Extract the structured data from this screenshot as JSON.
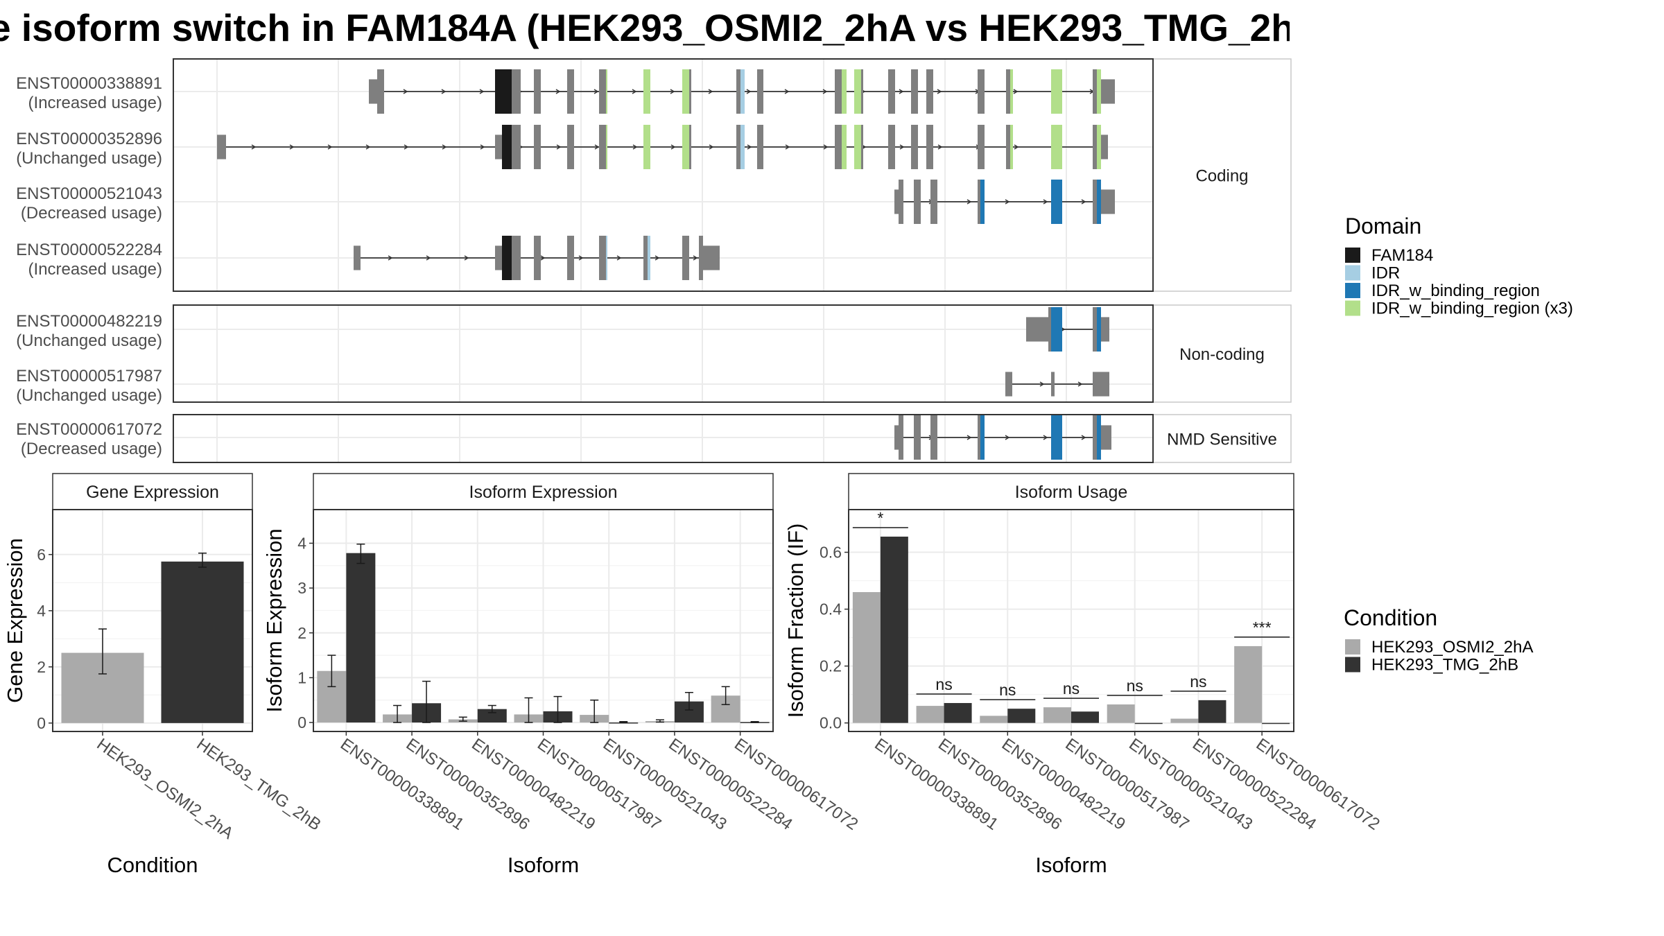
{
  "title": "e isoform switch in FAM184A (HEK293_OSMI2_2hA vs HEK293_TMG_2h",
  "colors": {
    "FAM184": "#1a1a1a",
    "IDR": "#a6cee3",
    "IDR_w_binding_region": "#1f78b4",
    "IDR_w_binding_region (x3)": "#b2df8a",
    "exon": "#7f7f7f",
    "cond_a": "#aaaaaa",
    "cond_b": "#333333",
    "strip_bg": "#ffffff",
    "panel_border": "#333333",
    "grid": "#ebebeb"
  },
  "transcript_panels": [
    {
      "label": "Coding",
      "transcripts": [
        {
          "id": "ENST00000338891",
          "usage": "(Increased usage)"
        },
        {
          "id": "ENST00000352896",
          "usage": "(Unchanged usage)"
        },
        {
          "id": "ENST00000521043",
          "usage": "(Decreased usage)"
        },
        {
          "id": "ENST00000522284",
          "usage": "(Increased usage)"
        }
      ]
    },
    {
      "label": "Non-coding",
      "transcripts": [
        {
          "id": "ENST00000482219",
          "usage": "(Unchanged usage)"
        },
        {
          "id": "ENST00000517987",
          "usage": "(Unchanged usage)"
        }
      ]
    },
    {
      "label": "NMD Sensitive",
      "transcripts": [
        {
          "id": "ENST00000617072",
          "usage": "(Decreased usage)"
        }
      ]
    }
  ],
  "domain_legend": {
    "title": "Domain",
    "items": [
      "FAM184",
      "IDR",
      "IDR_w_binding_region",
      "IDR_w_binding_region (x3)"
    ]
  },
  "condition_legend": {
    "title": "Condition",
    "items": [
      "HEK293_OSMI2_2hA",
      "HEK293_TMG_2hB"
    ]
  },
  "chart_data": [
    {
      "type": "bar",
      "title": "Gene Expression",
      "xlabel": "Condition",
      "ylabel": "Gene Expression",
      "categories": [
        "HEK293_OSMI2_2hA",
        "HEK293_TMG_2hB"
      ],
      "values": [
        2.5,
        5.75
      ],
      "err_low": [
        1.75,
        5.55
      ],
      "err_high": [
        3.35,
        6.05
      ],
      "ylim": [
        -0.3,
        7.6
      ],
      "yticks": [
        0,
        2,
        4,
        6
      ]
    },
    {
      "type": "bar",
      "title": "Isoform Expression",
      "xlabel": "Isoform",
      "ylabel": "Isoform Expression",
      "categories": [
        "ENST00000338891",
        "ENST00000352896",
        "ENST00000482219",
        "ENST00000517987",
        "ENST00000521043",
        "ENST00000522284",
        "ENST00000617072"
      ],
      "series": [
        {
          "name": "HEK293_OSMI2_2hA",
          "values": [
            1.15,
            0.18,
            0.07,
            0.18,
            0.17,
            0.03,
            0.6
          ],
          "err_low": [
            0.8,
            0.0,
            0.03,
            0.0,
            0.0,
            0.01,
            0.4
          ],
          "err_high": [
            1.5,
            0.38,
            0.12,
            0.55,
            0.5,
            0.06,
            0.8
          ]
        },
        {
          "name": "HEK293_TMG_2hB",
          "values": [
            3.78,
            0.43,
            0.3,
            0.25,
            0.0,
            0.47,
            0.01
          ],
          "err_low": [
            3.55,
            0.0,
            0.22,
            0.0,
            0.0,
            0.28,
            0.0
          ],
          "err_high": [
            3.98,
            0.92,
            0.38,
            0.58,
            0.02,
            0.67,
            0.02
          ]
        }
      ],
      "ylim": [
        -0.2,
        4.75
      ],
      "yticks": [
        0,
        1,
        2,
        3,
        4
      ]
    },
    {
      "type": "bar",
      "title": "Isoform Usage",
      "xlabel": "Isoform",
      "ylabel": "Isoform Fraction (IF)",
      "categories": [
        "ENST00000338891",
        "ENST00000352896",
        "ENST00000482219",
        "ENST00000517987",
        "ENST00000521043",
        "ENST00000522284",
        "ENST00000617072"
      ],
      "series": [
        {
          "name": "HEK293_OSMI2_2hA",
          "values": [
            0.46,
            0.06,
            0.025,
            0.055,
            0.065,
            0.015,
            0.27
          ]
        },
        {
          "name": "HEK293_TMG_2hB",
          "values": [
            0.655,
            0.07,
            0.05,
            0.04,
            0.0,
            0.08,
            0.0
          ]
        }
      ],
      "significance": [
        "*",
        "ns",
        "ns",
        "ns",
        "ns",
        "ns",
        "***"
      ],
      "ylim": [
        -0.03,
        0.75
      ],
      "yticks": [
        "0.0",
        "0.2",
        "0.4",
        "0.6"
      ]
    }
  ]
}
